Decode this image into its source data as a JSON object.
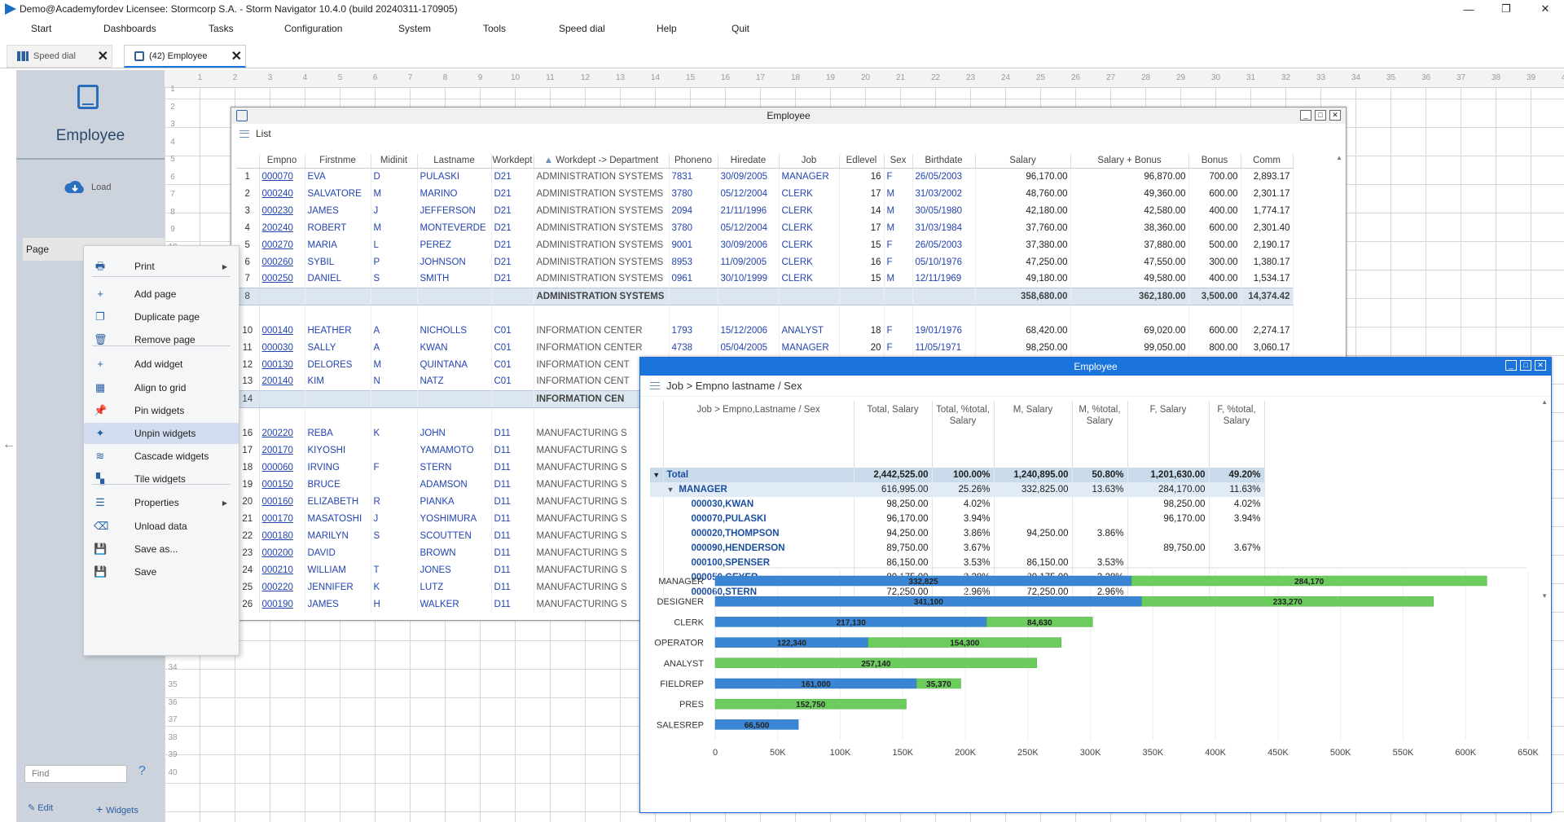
{
  "window": {
    "title": "Demo@Academyfordev   Licensee: Stormcorp S.A. -  Storm Navigator 10.4.0 (build 20240311-170905)"
  },
  "menubar": [
    "Start",
    "Dashboards",
    "Tasks",
    "Configuration",
    "System",
    "Tools",
    "Speed dial",
    "Help",
    "Quit"
  ],
  "tabs": [
    {
      "label": "Speed dial"
    },
    {
      "label": "(42) Employee"
    }
  ],
  "sidebar": {
    "title": "Employee",
    "load": "Load",
    "page": "Page",
    "find_placeholder": "Find",
    "help": "?",
    "edit": "Edit",
    "widgets": "Widgets"
  },
  "context_menu": [
    {
      "label": "Print",
      "icon": "printer-icon",
      "submenu": true
    },
    {
      "label": "Add page",
      "icon": "plus-icon"
    },
    {
      "label": "Duplicate page",
      "icon": "duplicate-icon"
    },
    {
      "label": "Remove page",
      "icon": "trash-icon"
    },
    {
      "label": "Add widget",
      "icon": "plus-icon"
    },
    {
      "label": "Align to grid",
      "icon": "grid-icon"
    },
    {
      "label": "Pin widgets",
      "icon": "pin-icon"
    },
    {
      "label": "Unpin widgets",
      "icon": "unpin-icon",
      "highlighted": true
    },
    {
      "label": "Cascade widgets",
      "icon": "layers-icon"
    },
    {
      "label": "Tile widgets",
      "icon": "tiles-icon"
    },
    {
      "label": "Properties",
      "icon": "properties-icon",
      "submenu": true
    },
    {
      "label": "Unload data",
      "icon": "eraser-icon"
    },
    {
      "label": "Save as...",
      "icon": "save-icon"
    },
    {
      "label": "Save",
      "icon": "save-icon"
    }
  ],
  "list_window": {
    "title": "Employee",
    "toolbar": "List",
    "columns": [
      "Empno",
      "Firstnme",
      "Midinit",
      "Lastname",
      "Workdept",
      "Workdept -> Department",
      "Phoneno",
      "Hiredate",
      "Job",
      "Edlevel",
      "Sex",
      "Birthdate",
      "Salary",
      "Salary + Bonus",
      "Bonus",
      "Comm"
    ],
    "rows": [
      {
        "n": "1",
        "c": [
          "000070",
          "EVA",
          "D",
          "PULASKI",
          "D21",
          "ADMINISTRATION SYSTEMS",
          "7831",
          "30/09/2005",
          "MANAGER",
          "16",
          "F",
          "26/05/2003",
          "96,170.00",
          "96,870.00",
          "700.00",
          "2,893.17"
        ]
      },
      {
        "n": "2",
        "c": [
          "000240",
          "SALVATORE",
          "M",
          "MARINO",
          "D21",
          "ADMINISTRATION SYSTEMS",
          "3780",
          "05/12/2004",
          "CLERK",
          "17",
          "M",
          "31/03/2002",
          "48,760.00",
          "49,360.00",
          "600.00",
          "2,301.17"
        ]
      },
      {
        "n": "3",
        "c": [
          "000230",
          "JAMES",
          "J",
          "JEFFERSON",
          "D21",
          "ADMINISTRATION SYSTEMS",
          "2094",
          "21/11/1996",
          "CLERK",
          "14",
          "M",
          "30/05/1980",
          "42,180.00",
          "42,580.00",
          "400.00",
          "1,774.17"
        ]
      },
      {
        "n": "4",
        "c": [
          "200240",
          "ROBERT",
          "M",
          "MONTEVERDE",
          "D21",
          "ADMINISTRATION SYSTEMS",
          "3780",
          "05/12/2004",
          "CLERK",
          "17",
          "M",
          "31/03/1984",
          "37,760.00",
          "38,360.00",
          "600.00",
          "2,301.40"
        ]
      },
      {
        "n": "5",
        "c": [
          "000270",
          "MARIA",
          "L",
          "PEREZ",
          "D21",
          "ADMINISTRATION SYSTEMS",
          "9001",
          "30/09/2006",
          "CLERK",
          "15",
          "F",
          "26/05/2003",
          "37,380.00",
          "37,880.00",
          "500.00",
          "2,190.17"
        ]
      },
      {
        "n": "6",
        "c": [
          "000260",
          "SYBIL",
          "P",
          "JOHNSON",
          "D21",
          "ADMINISTRATION SYSTEMS",
          "8953",
          "11/09/2005",
          "CLERK",
          "16",
          "F",
          "05/10/1976",
          "47,250.00",
          "47,550.00",
          "300.00",
          "1,380.17"
        ]
      },
      {
        "n": "7",
        "c": [
          "000250",
          "DANIEL",
          "S",
          "SMITH",
          "D21",
          "ADMINISTRATION SYSTEMS",
          "0961",
          "30/10/1999",
          "CLERK",
          "15",
          "M",
          "12/11/1969",
          "49,180.00",
          "49,580.00",
          "400.00",
          "1,534.17"
        ]
      },
      {
        "n": "8",
        "sub": true,
        "c": [
          "",
          "",
          "",
          "",
          "",
          "ADMINISTRATION SYSTEMS",
          "",
          "",
          "",
          "",
          "",
          "",
          "358,680.00",
          "362,180.00",
          "3,500.00",
          "14,374.42"
        ]
      },
      {
        "n": "9",
        "blank": true,
        "c": [
          "",
          "",
          "",
          "",
          "",
          "",
          "",
          "",
          "",
          "",
          "",
          "",
          "",
          "",
          "",
          ""
        ]
      },
      {
        "n": "10",
        "c": [
          "000140",
          "HEATHER",
          "A",
          "NICHOLLS",
          "C01",
          "INFORMATION CENTER",
          "1793",
          "15/12/2006",
          "ANALYST",
          "18",
          "F",
          "19/01/1976",
          "68,420.00",
          "69,020.00",
          "600.00",
          "2,274.17"
        ]
      },
      {
        "n": "11",
        "c": [
          "000030",
          "SALLY",
          "A",
          "KWAN",
          "C01",
          "INFORMATION CENTER",
          "4738",
          "05/04/2005",
          "MANAGER",
          "20",
          "F",
          "11/05/1971",
          "98,250.00",
          "99,050.00",
          "800.00",
          "3,060.17"
        ]
      },
      {
        "n": "12",
        "c": [
          "000130",
          "DELORES",
          "M",
          "QUINTANA",
          "C01",
          "INFORMATION CENT",
          "",
          "",
          "",
          "",
          "",
          "",
          "",
          "",
          "",
          ""
        ]
      },
      {
        "n": "13",
        "c": [
          "200140",
          "KIM",
          "N",
          "NATZ",
          "C01",
          "INFORMATION CENT",
          "",
          "",
          "",
          "",
          "",
          "",
          "",
          "",
          "",
          ""
        ]
      },
      {
        "n": "14",
        "sub": true,
        "c": [
          "",
          "",
          "",
          "",
          "",
          "INFORMATION CEN",
          "",
          "",
          "",
          "",
          "",
          "",
          "",
          "",
          "",
          ""
        ]
      },
      {
        "n": "15",
        "blank": true,
        "c": [
          "",
          "",
          "",
          "",
          "",
          "",
          "",
          "",
          "",
          "",
          "",
          "",
          "",
          "",
          "",
          ""
        ]
      },
      {
        "n": "16",
        "c": [
          "200220",
          "REBA",
          "K",
          "JOHN",
          "D11",
          "MANUFACTURING S",
          "",
          "",
          "",
          "",
          "",
          "",
          "",
          "",
          "",
          ""
        ]
      },
      {
        "n": "17",
        "c": [
          "200170",
          "KIYOSHI",
          "",
          "YAMAMOTO",
          "D11",
          "MANUFACTURING S",
          "",
          "",
          "",
          "",
          "",
          "",
          "",
          "",
          "",
          ""
        ]
      },
      {
        "n": "18",
        "c": [
          "000060",
          "IRVING",
          "F",
          "STERN",
          "D11",
          "MANUFACTURING S",
          "",
          "",
          "",
          "",
          "",
          "",
          "",
          "",
          "",
          ""
        ]
      },
      {
        "n": "19",
        "c": [
          "000150",
          "BRUCE",
          "",
          "ADAMSON",
          "D11",
          "MANUFACTURING S",
          "",
          "",
          "",
          "",
          "",
          "",
          "",
          "",
          "",
          ""
        ]
      },
      {
        "n": "20",
        "c": [
          "000160",
          "ELIZABETH",
          "R",
          "PIANKA",
          "D11",
          "MANUFACTURING S",
          "",
          "",
          "",
          "",
          "",
          "",
          "",
          "",
          "",
          ""
        ]
      },
      {
        "n": "21",
        "c": [
          "000170",
          "MASATOSHI",
          "J",
          "YOSHIMURA",
          "D11",
          "MANUFACTURING S",
          "",
          "",
          "",
          "",
          "",
          "",
          "",
          "",
          "",
          ""
        ]
      },
      {
        "n": "22",
        "c": [
          "000180",
          "MARILYN",
          "S",
          "SCOUTTEN",
          "D11",
          "MANUFACTURING S",
          "",
          "",
          "",
          "",
          "",
          "",
          "",
          "",
          "",
          ""
        ]
      },
      {
        "n": "23",
        "c": [
          "000200",
          "DAVID",
          "",
          "BROWN",
          "D11",
          "MANUFACTURING S",
          "",
          "",
          "",
          "",
          "",
          "",
          "",
          "",
          "",
          ""
        ]
      },
      {
        "n": "24",
        "c": [
          "000210",
          "WILLIAM",
          "T",
          "JONES",
          "D11",
          "MANUFACTURING S",
          "",
          "",
          "",
          "",
          "",
          "",
          "",
          "",
          "",
          ""
        ]
      },
      {
        "n": "25",
        "c": [
          "000220",
          "JENNIFER",
          "K",
          "LUTZ",
          "D11",
          "MANUFACTURING S",
          "",
          "",
          "",
          "",
          "",
          "",
          "",
          "",
          "",
          ""
        ]
      },
      {
        "n": "26",
        "c": [
          "000190",
          "JAMES",
          "H",
          "WALKER",
          "D11",
          "MANUFACTURING S",
          "",
          "",
          "",
          "",
          "",
          "",
          "",
          "",
          "",
          ""
        ]
      }
    ]
  },
  "pivot_window": {
    "title": "Employee",
    "toolbar": "Job > Empno lastname / Sex",
    "columns": [
      "Job > Empno,Lastname / Sex",
      "Total, Salary",
      "Total, %total, Salary",
      "M, Salary",
      "M, %total, Salary",
      "F, Salary",
      "F, %total, Salary"
    ],
    "rows": [
      {
        "type": "tot",
        "c": [
          "Total",
          "2,442,525.00",
          "100.00%",
          "1,240,895.00",
          "50.80%",
          "1,201,630.00",
          "49.20%"
        ]
      },
      {
        "type": "mgr",
        "c": [
          "MANAGER",
          "616,995.00",
          "25.26%",
          "332,825.00",
          "13.63%",
          "284,170.00",
          "11.63%"
        ]
      },
      {
        "type": "emp",
        "c": [
          "000030,KWAN",
          "98,250.00",
          "4.02%",
          "",
          "",
          "98,250.00",
          "4.02%"
        ]
      },
      {
        "type": "emp",
        "c": [
          "000070,PULASKI",
          "96,170.00",
          "3.94%",
          "",
          "",
          "96,170.00",
          "3.94%"
        ]
      },
      {
        "type": "emp",
        "c": [
          "000020,THOMPSON",
          "94,250.00",
          "3.86%",
          "94,250.00",
          "3.86%",
          "",
          ""
        ]
      },
      {
        "type": "emp",
        "c": [
          "000090,HENDERSON",
          "89,750.00",
          "3.67%",
          "",
          "",
          "89,750.00",
          "3.67%"
        ]
      },
      {
        "type": "emp",
        "c": [
          "000100,SPENSER",
          "86,150.00",
          "3.53%",
          "86,150.00",
          "3.53%",
          "",
          ""
        ]
      },
      {
        "type": "emp",
        "c": [
          "000050,GEYER",
          "80,175.00",
          "3.28%",
          "80,175.00",
          "3.28%",
          "",
          ""
        ]
      },
      {
        "type": "emp",
        "c": [
          "000060,STERN",
          "72,250.00",
          "2.96%",
          "72,250.00",
          "2.96%",
          "",
          ""
        ]
      }
    ]
  },
  "chart_data": {
    "type": "bar",
    "orientation": "horizontal stacked",
    "categories": [
      "MANAGER",
      "DESIGNER",
      "CLERK",
      "OPERATOR",
      "ANALYST",
      "FIELDREP",
      "PRES",
      "SALESREP"
    ],
    "series": [
      {
        "values": [
          332825,
          341100,
          217130,
          122340,
          0,
          161000,
          0,
          66500
        ],
        "labels": [
          "332,825",
          "341,100",
          "217,130",
          "122,340",
          "",
          "161,000",
          "",
          "66,500"
        ],
        "color": "#3a86d4"
      },
      {
        "values": [
          284170,
          233270,
          84630,
          154300,
          257140,
          35370,
          152750,
          0
        ],
        "labels": [
          "284,170",
          "233,270",
          "84,630",
          "154,300",
          "257,140",
          "35,370",
          "152,750",
          ""
        ],
        "color": "#6ccc5e"
      }
    ],
    "xticks": [
      "0",
      "50K",
      "100K",
      "150K",
      "200K",
      "250K",
      "300K",
      "350K",
      "400K",
      "450K",
      "500K",
      "550K",
      "600K",
      "650K"
    ],
    "xlim": [
      0,
      650000
    ]
  }
}
